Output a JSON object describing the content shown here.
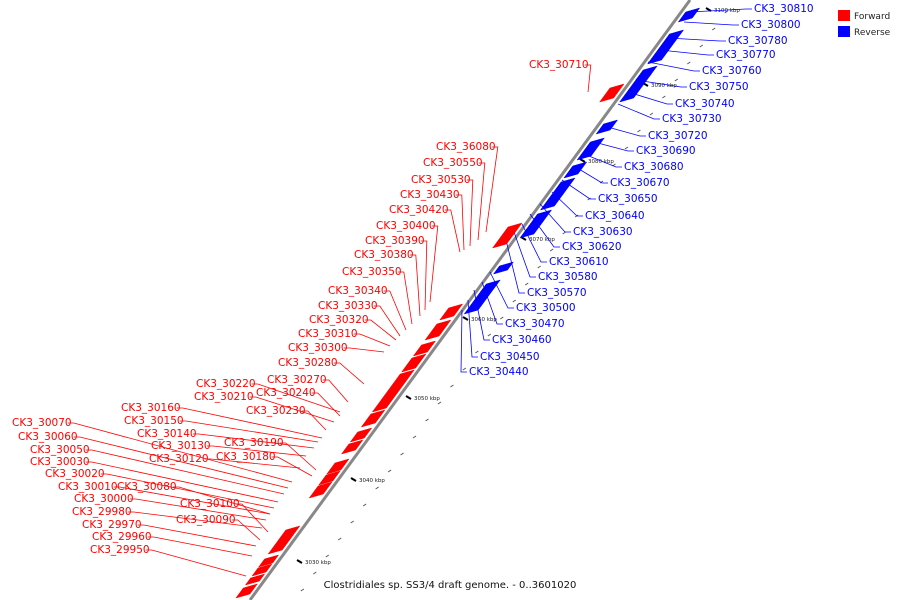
{
  "caption": "Clostridiales sp. SS3/4 draft genome. - 0..3601020",
  "legend": {
    "items": [
      {
        "label": "Forward",
        "color": "#ff0000"
      },
      {
        "label": "Reverse",
        "color": "#0000ff"
      }
    ]
  },
  "colors": {
    "forward": "#ff0000",
    "reverse": "#0000ff",
    "axis": "#888888"
  },
  "ticks": [
    "3030 kbp",
    "3040 kbp",
    "3050 kbp",
    "3060 kbp",
    "3070 kbp",
    "3080 kbp",
    "3090 kbp",
    "3100 kbp"
  ],
  "forward_genes": [
    "CK3_30710",
    "CK3_36080",
    "CK3_30550",
    "CK3_30530",
    "CK3_30430",
    "CK3_30420",
    "CK3_30400",
    "CK3_30390",
    "CK3_30380",
    "CK3_30350",
    "CK3_30340",
    "CK3_30330",
    "CK3_30320",
    "CK3_30310",
    "CK3_30300",
    "CK3_30280",
    "CK3_30270",
    "CK3_30220",
    "CK3_30240",
    "CK3_30210",
    "CK3_30230",
    "CK3_30160",
    "CK3_30150",
    "CK3_30140",
    "CK3_30190",
    "CK3_30130",
    "CK3_30180",
    "CK3_30120",
    "CK3_30070",
    "CK3_30060",
    "CK3_30050",
    "CK3_30030",
    "CK3_30020",
    "CK3_30010",
    "CK3_30080",
    "CK3_30000",
    "CK3_30100",
    "CK3_29980",
    "CK3_30090",
    "CK3_29970",
    "CK3_29960",
    "CK3_29950"
  ],
  "reverse_genes": [
    "CK3_30810",
    "CK3_30800",
    "CK3_30780",
    "CK3_30770",
    "CK3_30760",
    "CK3_30750",
    "CK3_30740",
    "CK3_30730",
    "CK3_30720",
    "CK3_30690",
    "CK3_30680",
    "CK3_30670",
    "CK3_30650",
    "CK3_30640",
    "CK3_30630",
    "CK3_30620",
    "CK3_30610",
    "CK3_30580",
    "CK3_30570",
    "CK3_30500",
    "CK3_30470",
    "CK3_30460",
    "CK3_30450",
    "CK3_30440"
  ]
}
